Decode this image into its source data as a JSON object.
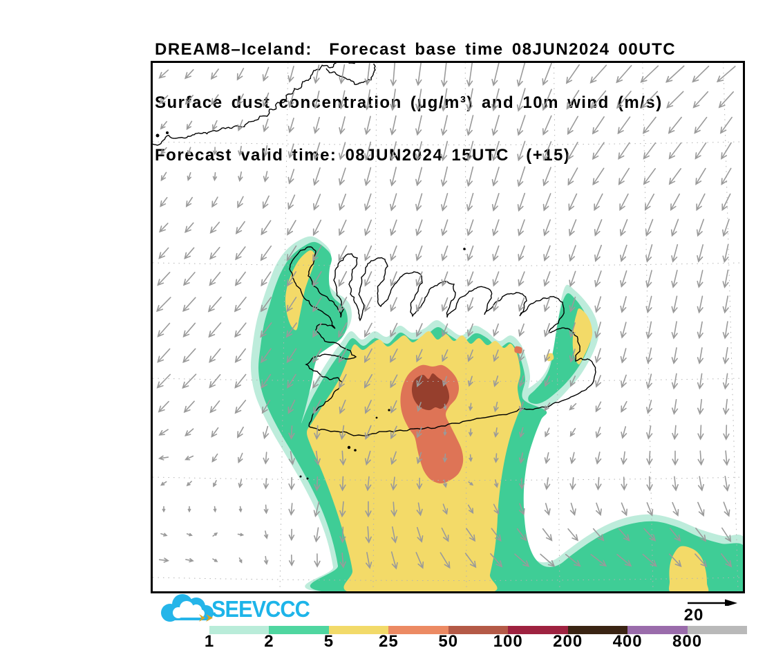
{
  "title": {
    "line1": "DREAM8–Iceland:  Forecast base time 08JUN2024 00UTC",
    "line2": "Surface dust concentration (µg/m³) and 10m wind (m/s)",
    "line3": "Forecast valid time: 08JUN2024 15UTC  (+15)"
  },
  "logo": {
    "text": "SEEVCCC",
    "text_color": "#1db4e9",
    "cloud_color": "#25b5e9",
    "arrow_color": "#d9a326"
  },
  "wind_scale": {
    "value": "20"
  },
  "colorbar": {
    "labels": [
      "1",
      "2",
      "5",
      "25",
      "50",
      "100",
      "200",
      "400",
      "800"
    ],
    "colors": [
      "#b9ecd9",
      "#4fd6a0",
      "#f2da69",
      "#ec8a63",
      "#b45a47",
      "#9e2240",
      "#3a2413",
      "#9a6cab",
      "#b9b9b9"
    ]
  },
  "map": {
    "background": "#ffffff",
    "frame_color": "#000000",
    "grid_color": "#b3b3b3",
    "coast_color": "#000000",
    "arrow_color": "#9a9a9a",
    "contour_colors": {
      "level1_teal": "#bdecdb",
      "level2_green": "#3fcd96",
      "level5_yellow": "#f3da68",
      "level25_orange": "#de7456",
      "level50_darkred": "#963f2d"
    }
  }
}
